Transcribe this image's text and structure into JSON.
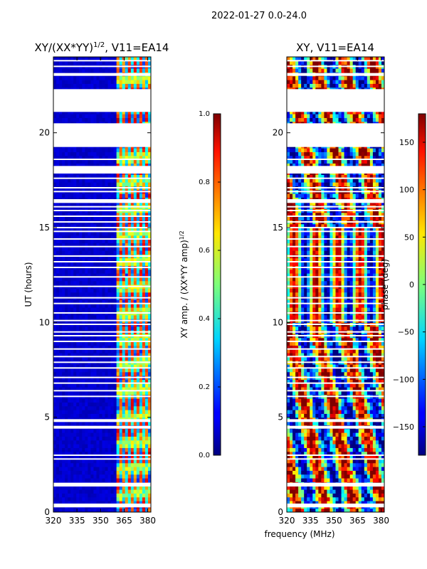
{
  "suptitle": "2022-01-27 0.0-24.0",
  "chart_data": [
    {
      "type": "heatmap",
      "title_main": "XY/(XX*YY)",
      "title_exp": "1/2",
      "title_rest": ", V11=EA14",
      "xlabel": "",
      "ylabel": "UT (hours)",
      "xlim": [
        320,
        382
      ],
      "ylim": [
        0,
        24
      ],
      "xticks": [
        320,
        335,
        350,
        365,
        380
      ],
      "yticks": [
        0,
        5,
        10,
        15,
        20
      ],
      "colorbar": {
        "label_main": "XY amp. / (XX*YY amp)",
        "label_exp": "1/2",
        "range": [
          0.0,
          1.0
        ],
        "ticks": [
          "0.0",
          "0.2",
          "0.4",
          "0.6",
          "0.8",
          "1.0"
        ],
        "colormap": "jet"
      },
      "description_values": {
        "background_level": 0.05,
        "band_361_382_level": 0.55
      }
    },
    {
      "type": "heatmap",
      "title_main": "XY, V11=EA14",
      "xlabel": "frequency (MHz)",
      "ylabel": "",
      "xlim": [
        320,
        382
      ],
      "ylim": [
        0,
        24
      ],
      "xticks": [
        320,
        335,
        350,
        365,
        380
      ],
      "yticks": [
        0,
        5,
        10,
        15,
        20
      ],
      "colorbar": {
        "label_main": "phase (deg)",
        "range": [
          -180,
          180
        ],
        "ticks": [
          "150",
          "100",
          "50",
          "0",
          "−50",
          "−100",
          "−150"
        ],
        "tick_values": [
          150,
          100,
          50,
          0,
          -50,
          -100,
          -150
        ],
        "colormap": "jet"
      }
    }
  ],
  "data_gaps_hours": [
    [
      0.25,
      0.45
    ],
    [
      1.35,
      1.55
    ],
    [
      4.4,
      4.55
    ],
    [
      4.75,
      4.9
    ],
    [
      19.25,
      20.5
    ],
    [
      21.1,
      22.3
    ],
    [
      23.0,
      23.15
    ],
    [
      17.85,
      18.25
    ],
    [
      16.3,
      16.5
    ]
  ],
  "thin_gaps_hours": [
    2.8,
    3.0,
    6.1,
    6.4,
    6.8,
    7.1,
    7.6,
    7.9,
    8.2,
    8.6,
    9.0,
    9.3,
    9.5,
    9.9,
    10.1,
    10.5,
    11.0,
    11.3,
    11.9,
    12.4,
    12.9,
    13.2,
    13.5,
    14.0,
    14.4,
    14.8,
    15.0,
    15.3,
    15.6,
    15.9,
    16.1,
    16.9,
    17.1,
    17.6,
    18.6,
    23.5,
    23.8
  ]
}
